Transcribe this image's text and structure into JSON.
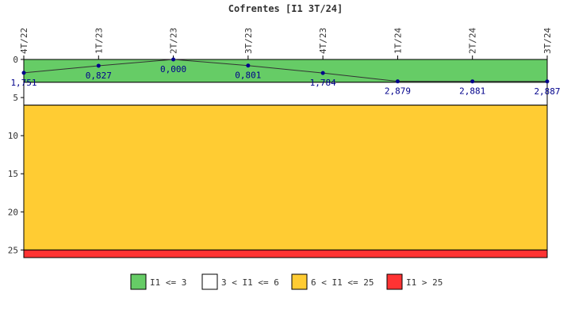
{
  "chart_data": {
    "type": "line",
    "title": "Cofrentes [I1 3T/24]",
    "categories": [
      "4T/22",
      "1T/23",
      "2T/23",
      "3T/23",
      "4T/23",
      "1T/24",
      "2T/24",
      "3T/24"
    ],
    "series": [
      {
        "values": [
          1.751,
          0.827,
          0.0,
          0.801,
          1.784,
          2.879,
          2.881,
          2.887
        ],
        "labels": [
          "1,751",
          "0,827",
          "0,000",
          "0,801",
          "1,784",
          "2,879",
          "2,881",
          "2,887"
        ],
        "color": "#00008b",
        "line_color": "#333333"
      }
    ],
    "y_axis": {
      "reversed": true,
      "ylim": [
        0,
        26
      ],
      "ticks": [
        0,
        5,
        10,
        15,
        20,
        25
      ],
      "tick_labels": [
        "0",
        "5",
        "10",
        "15",
        "20",
        "25"
      ]
    },
    "bands": [
      {
        "from": 0,
        "to": 3,
        "color": "#66cc66",
        "legend": "I1 <= 3"
      },
      {
        "from": 3,
        "to": 6,
        "color": "#ffffff",
        "legend": "3 < I1 <= 6"
      },
      {
        "from": 6,
        "to": 25,
        "color": "#ffcc33",
        "legend": "6 < I1 <= 25"
      },
      {
        "from": 25,
        "to": 26,
        "color": "#ff3333",
        "legend": "I1 > 25"
      }
    ],
    "grid": false,
    "legend_position": "bottom"
  }
}
